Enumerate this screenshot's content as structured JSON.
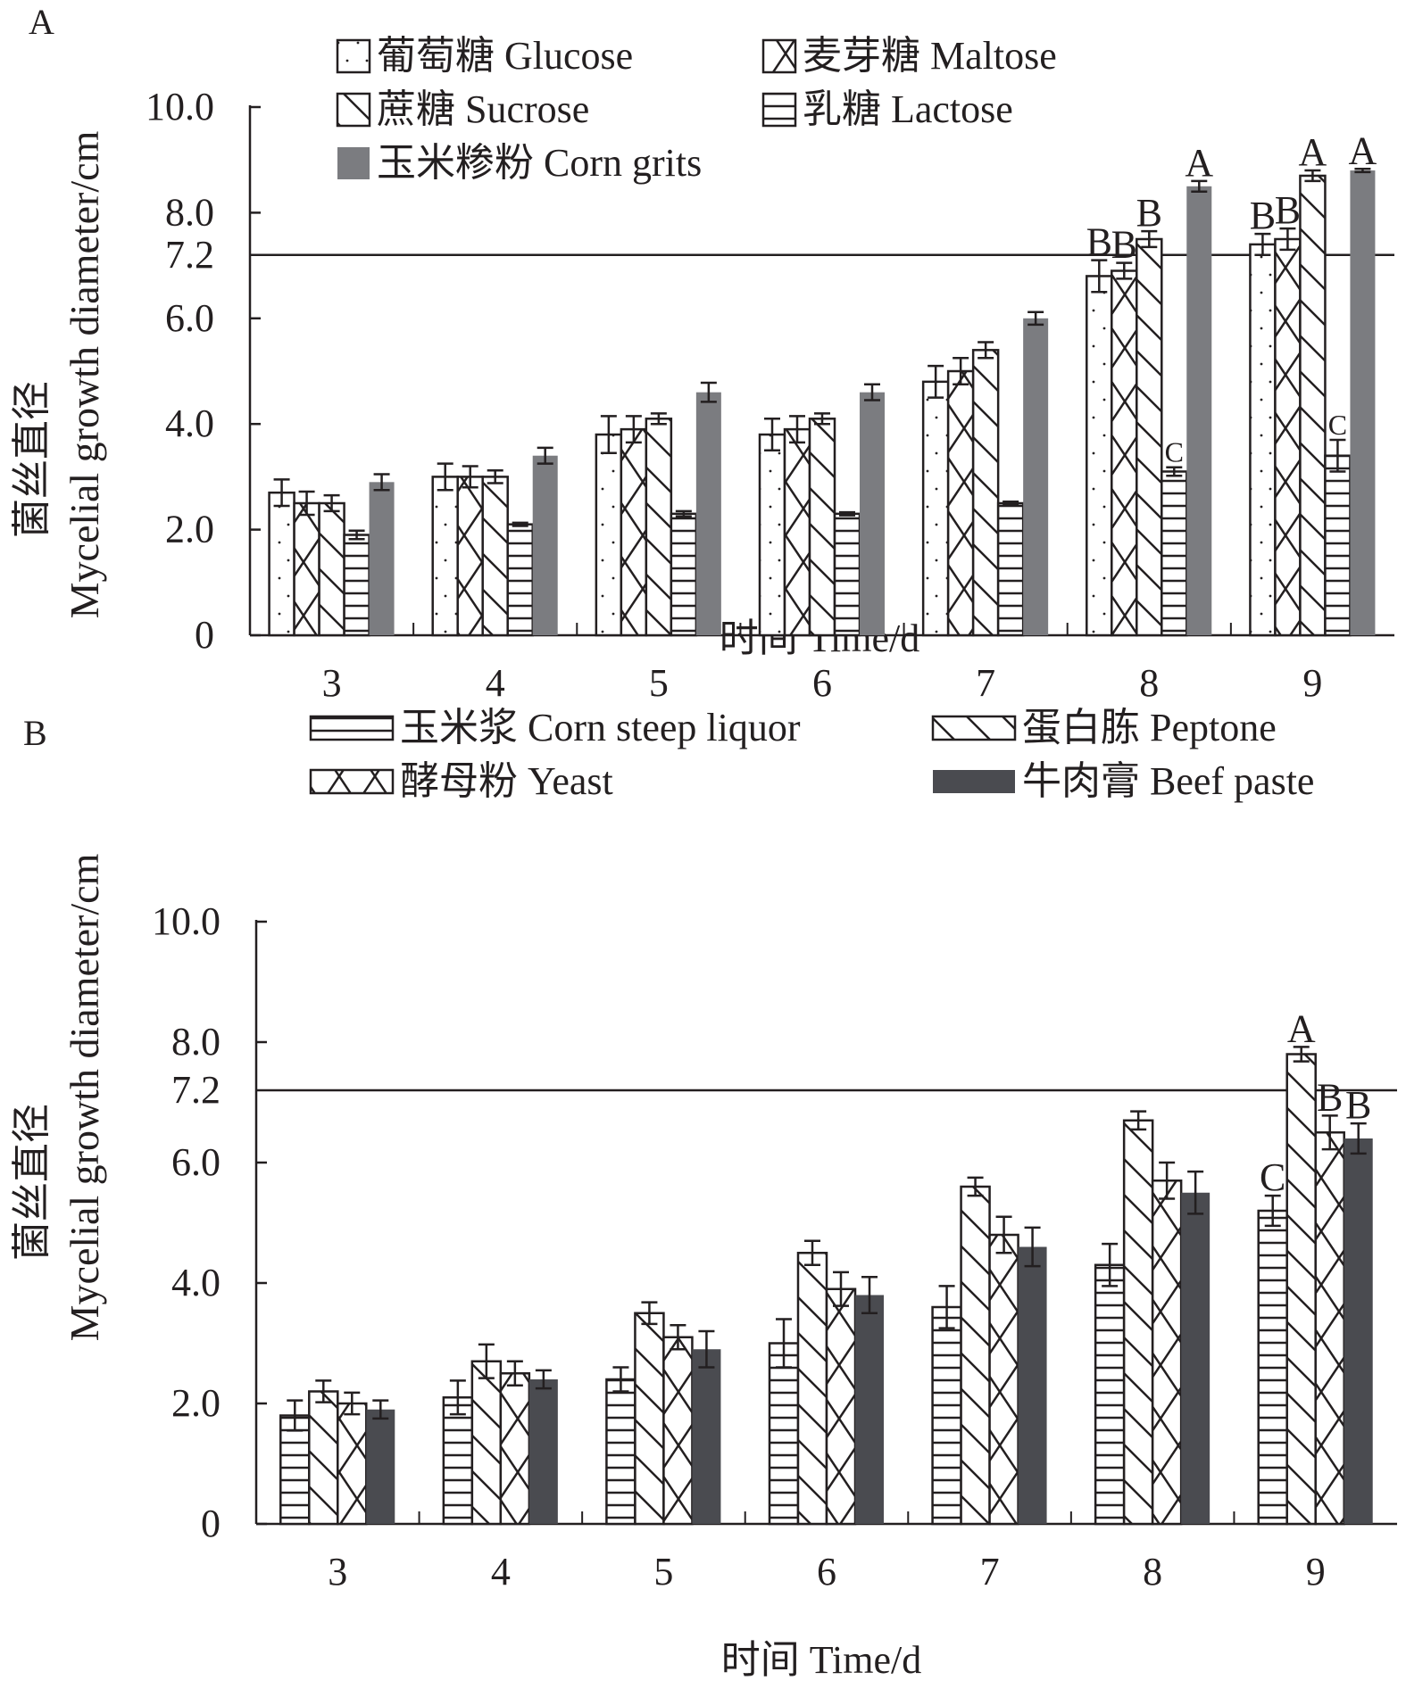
{
  "chart_data": [
    {
      "panel_label": "A",
      "type": "bar",
      "title": "",
      "xlabel": "时间 Time/d",
      "ylabel_cn": "菌丝直径",
      "ylabel_en": "Mycelial growth diameter/cm",
      "ylim": [
        0,
        10
      ],
      "yticks": [
        "0",
        "2.0",
        "4.0",
        "6.0",
        "7.2",
        "8.0",
        "10.0"
      ],
      "ytick_values": [
        0,
        2,
        4,
        6,
        7.2,
        8,
        10
      ],
      "reference_line": 7.2,
      "grid": false,
      "legend_position": "top-left",
      "categories": [
        "3",
        "4",
        "5",
        "6",
        "7",
        "8",
        "9"
      ],
      "series": [
        {
          "name": "葡萄糖 Glucose",
          "pattern": "dots",
          "color": "#ffffff",
          "values": [
            2.7,
            3.0,
            3.8,
            3.8,
            4.8,
            6.8,
            7.4
          ],
          "errors": [
            0.25,
            0.25,
            0.35,
            0.3,
            0.3,
            0.3,
            0.2
          ],
          "labels": [
            "",
            "",
            "",
            "",
            "",
            "B",
            "B"
          ]
        },
        {
          "name": "麦芽糖 Maltose",
          "pattern": "crosshatch",
          "color": "#ffffff",
          "values": [
            2.5,
            3.0,
            3.9,
            3.9,
            5.0,
            6.9,
            7.5
          ],
          "errors": [
            0.22,
            0.2,
            0.25,
            0.25,
            0.25,
            0.15,
            0.2
          ],
          "labels": [
            "",
            "",
            "",
            "",
            "",
            "B",
            "B"
          ]
        },
        {
          "name": "蔗糖 Sucrose",
          "pattern": "diagonal",
          "color": "#ffffff",
          "values": [
            2.5,
            3.0,
            4.1,
            4.1,
            5.4,
            7.5,
            8.7
          ],
          "errors": [
            0.15,
            0.12,
            0.1,
            0.1,
            0.15,
            0.15,
            0.1
          ],
          "labels": [
            "",
            "",
            "",
            "",
            "",
            "B",
            "A"
          ]
        },
        {
          "name": "乳糖 Lactose",
          "pattern": "horizontal",
          "color": "#ffffff",
          "values": [
            1.9,
            2.1,
            2.3,
            2.3,
            2.5,
            3.1,
            3.4
          ],
          "errors": [
            0.08,
            0.03,
            0.05,
            0.03,
            0.03,
            0.08,
            0.3
          ],
          "labels": [
            "",
            "",
            "",
            "",
            "",
            "C",
            "C"
          ]
        },
        {
          "name": "玉米糁粉 Corn grits",
          "pattern": "solid",
          "color": "#7b7c80",
          "values": [
            2.9,
            3.4,
            4.6,
            4.6,
            6.0,
            8.5,
            8.8
          ],
          "errors": [
            0.15,
            0.15,
            0.18,
            0.15,
            0.12,
            0.1,
            0.03
          ],
          "labels": [
            "",
            "",
            "",
            "",
            "",
            "A",
            "A"
          ]
        }
      ]
    },
    {
      "panel_label": "B",
      "type": "bar",
      "title": "",
      "xlabel": "时间 Time/d",
      "ylabel_cn": "菌丝直径",
      "ylabel_en": "Mycelial growth diameter/cm",
      "ylim": [
        0,
        10
      ],
      "yticks": [
        "0",
        "2.0",
        "4.0",
        "6.0",
        "7.2",
        "8.0",
        "10.0"
      ],
      "ytick_values": [
        0,
        2,
        4,
        6,
        7.2,
        8,
        10
      ],
      "reference_line": 7.2,
      "grid": false,
      "legend_position": "top",
      "categories": [
        "3",
        "4",
        "5",
        "6",
        "7",
        "8",
        "9"
      ],
      "series": [
        {
          "name": "玉米浆 Corn steep liquor",
          "pattern": "horizontal",
          "color": "#ffffff",
          "values": [
            1.8,
            2.1,
            2.4,
            3.0,
            3.6,
            4.3,
            5.2
          ],
          "errors": [
            0.25,
            0.28,
            0.2,
            0.4,
            0.35,
            0.35,
            0.25
          ],
          "labels": [
            "",
            "",
            "",
            "",
            "",
            "",
            "C"
          ]
        },
        {
          "name": "蛋白胨 Peptone",
          "pattern": "diagonal",
          "color": "#ffffff",
          "values": [
            2.2,
            2.7,
            3.5,
            4.5,
            5.6,
            6.7,
            7.8
          ],
          "errors": [
            0.18,
            0.28,
            0.18,
            0.2,
            0.15,
            0.15,
            0.12
          ],
          "labels": [
            "",
            "",
            "",
            "",
            "",
            "",
            "A"
          ]
        },
        {
          "name": "酵母粉 Yeast",
          "pattern": "crosshatch",
          "color": "#ffffff",
          "values": [
            2.0,
            2.5,
            3.1,
            3.9,
            4.8,
            5.7,
            6.5
          ],
          "errors": [
            0.18,
            0.2,
            0.2,
            0.28,
            0.3,
            0.3,
            0.28
          ],
          "labels": [
            "",
            "",
            "",
            "",
            "",
            "",
            "B"
          ]
        },
        {
          "name": "牛肉膏 Beef paste",
          "pattern": "solid",
          "color": "#4a4b50",
          "values": [
            1.9,
            2.4,
            2.9,
            3.8,
            4.6,
            5.5,
            6.4
          ],
          "errors": [
            0.15,
            0.15,
            0.3,
            0.3,
            0.32,
            0.35,
            0.25
          ],
          "labels": [
            "",
            "",
            "",
            "",
            "",
            "",
            "B"
          ]
        }
      ]
    }
  ]
}
